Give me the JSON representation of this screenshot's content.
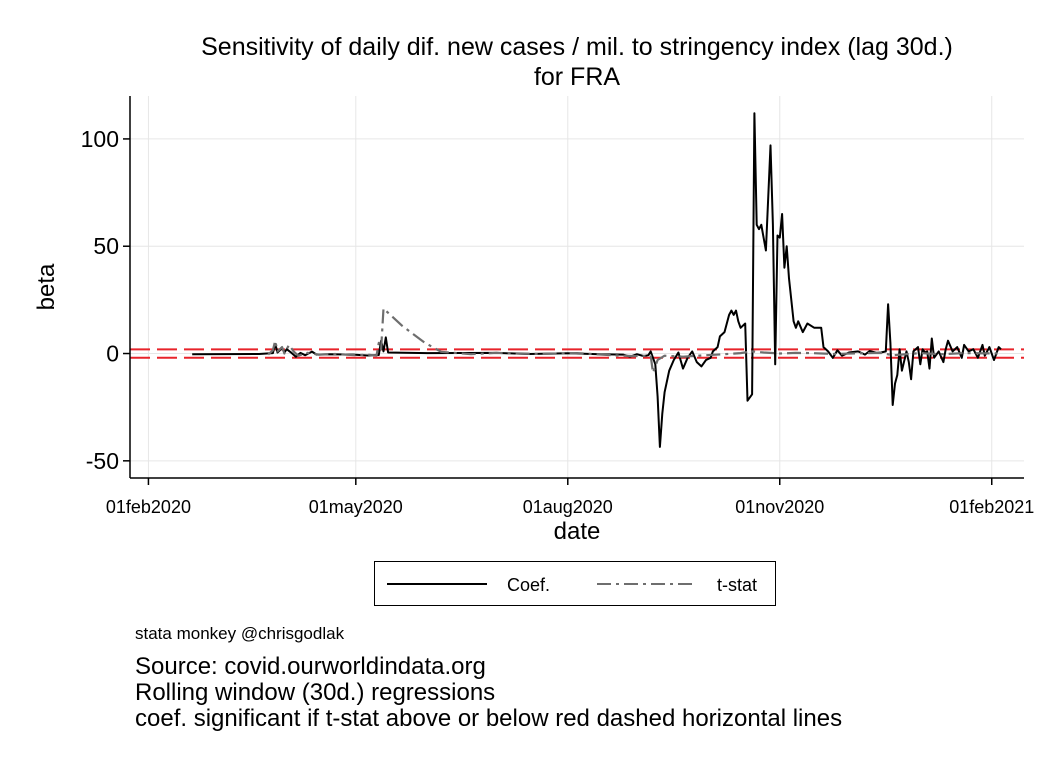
{
  "chart_data": {
    "type": "line",
    "title": "Sensitivity of daily dif. new cases / mil. to stringency index (lag 30d.)",
    "subtitle": "for FRA",
    "xlabel": "date",
    "ylabel": "beta",
    "xlim": [
      "2020-01-24",
      "2021-02-15"
    ],
    "ylim": [
      -58,
      120
    ],
    "yticks": [
      -50,
      0,
      50,
      100
    ],
    "xticks": [
      "2020-02-01",
      "2020-05-01",
      "2020-08-01",
      "2020-11-01",
      "2021-02-01"
    ],
    "xtick_labels": [
      "01feb2020",
      "01may2020",
      "01aug2020",
      "01nov2020",
      "01feb2021"
    ],
    "grid": true,
    "legend": {
      "placement": "bottom",
      "entries": [
        "Coef.",
        "t-stat"
      ]
    },
    "reference_lines": [
      {
        "y": 1.96,
        "color": "#e8232a",
        "style": "dashed"
      },
      {
        "y": -1.96,
        "color": "#e8232a",
        "style": "dashed"
      }
    ],
    "series": [
      {
        "name": "Coef.",
        "color": "#000000",
        "style": "solid",
        "points": [
          [
            "2020-02-20",
            -0.3
          ],
          [
            "2020-03-20",
            -0.2
          ],
          [
            "2020-03-26",
            0.2
          ],
          [
            "2020-03-27",
            4.5
          ],
          [
            "2020-03-28",
            0.5
          ],
          [
            "2020-03-30",
            2.5
          ],
          [
            "2020-03-31",
            0.5
          ],
          [
            "2020-04-01",
            2.0
          ],
          [
            "2020-04-03",
            0.4
          ],
          [
            "2020-04-05",
            -1.5
          ],
          [
            "2020-04-07",
            0.3
          ],
          [
            "2020-04-09",
            -0.8
          ],
          [
            "2020-04-12",
            0.9
          ],
          [
            "2020-04-14",
            -0.5
          ],
          [
            "2020-04-20",
            -0.3
          ],
          [
            "2020-04-30",
            -0.5
          ],
          [
            "2020-05-06",
            -0.9
          ],
          [
            "2020-05-11",
            -0.7
          ],
          [
            "2020-05-12",
            6.0
          ],
          [
            "2020-05-13",
            1.0
          ],
          [
            "2020-05-14",
            7.5
          ],
          [
            "2020-05-15",
            0.5
          ],
          [
            "2020-06-01",
            0.2
          ],
          [
            "2020-07-01",
            0.3
          ],
          [
            "2020-07-15",
            -0.2
          ],
          [
            "2020-08-01",
            0.1
          ],
          [
            "2020-08-15",
            -0.3
          ],
          [
            "2020-08-25",
            -0.5
          ],
          [
            "2020-08-28",
            -1.5
          ],
          [
            "2020-08-31",
            -0.3
          ],
          [
            "2020-09-03",
            -1.2
          ],
          [
            "2020-09-05",
            -0.8
          ],
          [
            "2020-09-06",
            1.0
          ],
          [
            "2020-09-08",
            -5.0
          ],
          [
            "2020-09-09",
            -20.0
          ],
          [
            "2020-09-10",
            -43.5
          ],
          [
            "2020-09-11",
            -28.0
          ],
          [
            "2020-09-12",
            -18.0
          ],
          [
            "2020-09-14",
            -8.0
          ],
          [
            "2020-09-16",
            -3.0
          ],
          [
            "2020-09-18",
            0.5
          ],
          [
            "2020-09-20",
            -7.0
          ],
          [
            "2020-09-22",
            -2.0
          ],
          [
            "2020-09-24",
            1.0
          ],
          [
            "2020-09-26",
            -4.0
          ],
          [
            "2020-09-28",
            -6.0
          ],
          [
            "2020-09-30",
            -3.0
          ],
          [
            "2020-10-02",
            -2.0
          ],
          [
            "2020-10-03",
            1.0
          ],
          [
            "2020-10-05",
            3.0
          ],
          [
            "2020-10-06",
            8.0
          ],
          [
            "2020-10-08",
            10.0
          ],
          [
            "2020-10-10",
            18.0
          ],
          [
            "2020-10-11",
            20.0
          ],
          [
            "2020-10-12",
            18.0
          ],
          [
            "2020-10-13",
            20.0
          ],
          [
            "2020-10-14",
            15.0
          ],
          [
            "2020-10-15",
            12.0
          ],
          [
            "2020-10-17",
            14.0
          ],
          [
            "2020-10-18",
            -22.0
          ],
          [
            "2020-10-20",
            -19.0
          ],
          [
            "2020-10-21",
            112.0
          ],
          [
            "2020-10-22",
            60.0
          ],
          [
            "2020-10-23",
            58.0
          ],
          [
            "2020-10-24",
            60.0
          ],
          [
            "2020-10-26",
            48.0
          ],
          [
            "2020-10-28",
            97.0
          ],
          [
            "2020-10-29",
            60.0
          ],
          [
            "2020-10-30",
            -5.0
          ],
          [
            "2020-10-31",
            55.0
          ],
          [
            "2020-11-01",
            54.0
          ],
          [
            "2020-11-02",
            65.0
          ],
          [
            "2020-11-03",
            40.0
          ],
          [
            "2020-11-04",
            50.0
          ],
          [
            "2020-11-05",
            35.0
          ],
          [
            "2020-11-07",
            15.0
          ],
          [
            "2020-11-08",
            12.0
          ],
          [
            "2020-11-09",
            15.0
          ],
          [
            "2020-11-11",
            10.0
          ],
          [
            "2020-11-13",
            14.0
          ],
          [
            "2020-11-16",
            12.0
          ],
          [
            "2020-11-19",
            12.0
          ],
          [
            "2020-11-20",
            3.0
          ],
          [
            "2020-11-22",
            1.0
          ],
          [
            "2020-11-24",
            -2.0
          ],
          [
            "2020-11-26",
            1.5
          ],
          [
            "2020-11-28",
            -1.0
          ],
          [
            "2020-12-01",
            0.5
          ],
          [
            "2020-12-05",
            1.0
          ],
          [
            "2020-12-08",
            -0.5
          ],
          [
            "2020-12-10",
            1.2
          ],
          [
            "2020-12-13",
            0.3
          ],
          [
            "2020-12-15",
            0.5
          ],
          [
            "2020-12-17",
            1.0
          ],
          [
            "2020-12-18",
            23.0
          ],
          [
            "2020-12-19",
            5.0
          ],
          [
            "2020-12-20",
            -24.0
          ],
          [
            "2020-12-21",
            -14.0
          ],
          [
            "2020-12-22",
            -10.0
          ],
          [
            "2020-12-23",
            2.0
          ],
          [
            "2020-12-24",
            -8.0
          ],
          [
            "2020-12-26",
            1.0
          ],
          [
            "2020-12-27",
            -4.0
          ],
          [
            "2020-12-28",
            -12.0
          ],
          [
            "2020-12-29",
            1.0
          ],
          [
            "2020-12-31",
            3.0
          ],
          [
            "2021-01-01",
            -5.0
          ],
          [
            "2021-01-02",
            2.0
          ],
          [
            "2021-01-03",
            0.5
          ],
          [
            "2021-01-04",
            1.0
          ],
          [
            "2021-01-05",
            -7.0
          ],
          [
            "2021-01-06",
            7.0
          ],
          [
            "2021-01-07",
            -2.0
          ],
          [
            "2021-01-09",
            1.0
          ],
          [
            "2021-01-11",
            -4.0
          ],
          [
            "2021-01-12",
            2.0
          ],
          [
            "2021-01-13",
            6.0
          ],
          [
            "2021-01-15",
            1.0
          ],
          [
            "2021-01-17",
            3.0
          ],
          [
            "2021-01-19",
            -2.0
          ],
          [
            "2021-01-20",
            4.0
          ],
          [
            "2021-01-22",
            1.0
          ],
          [
            "2021-01-24",
            2.0
          ],
          [
            "2021-01-26",
            -2.0
          ],
          [
            "2021-01-28",
            4.0
          ],
          [
            "2021-01-29",
            -1.0
          ],
          [
            "2021-01-31",
            3.0
          ],
          [
            "2021-02-02",
            -3.0
          ],
          [
            "2021-02-04",
            3.0
          ],
          [
            "2021-02-05",
            2.0
          ]
        ]
      },
      {
        "name": "t-stat",
        "color": "#6e6e6e",
        "style": "dash-dot",
        "points": [
          [
            "2020-03-24",
            -0.5
          ],
          [
            "2020-03-26",
            1.5
          ],
          [
            "2020-03-27",
            6.0
          ],
          [
            "2020-03-28",
            1.0
          ],
          [
            "2020-03-30",
            3.0
          ],
          [
            "2020-03-31",
            0.0
          ],
          [
            "2020-04-02",
            4.0
          ],
          [
            "2020-04-04",
            1.0
          ],
          [
            "2020-04-06",
            -1.0
          ],
          [
            "2020-04-10",
            0.3
          ],
          [
            "2020-04-15",
            -0.5
          ],
          [
            "2020-04-22",
            -0.2
          ],
          [
            "2020-05-01",
            -0.8
          ],
          [
            "2020-05-06",
            -0.5
          ],
          [
            "2020-05-10",
            -1.0
          ],
          [
            "2020-05-11",
            5.0
          ],
          [
            "2020-05-12",
            2.0
          ],
          [
            "2020-05-13",
            21.0
          ],
          [
            "2020-05-21",
            13.0
          ],
          [
            "2020-05-31",
            5.0
          ],
          [
            "2020-06-07",
            0.8
          ],
          [
            "2020-06-20",
            -0.3
          ],
          [
            "2020-07-01",
            0.3
          ],
          [
            "2020-07-20",
            -0.2
          ],
          [
            "2020-08-05",
            0.2
          ],
          [
            "2020-08-20",
            -0.8
          ],
          [
            "2020-08-30",
            -1.2
          ],
          [
            "2020-09-06",
            -1.0
          ],
          [
            "2020-09-07",
            -9.0
          ],
          [
            "2020-09-09",
            -3.0
          ],
          [
            "2020-09-12",
            -1.0
          ],
          [
            "2020-09-20",
            -1.5
          ],
          [
            "2020-09-30",
            -0.8
          ],
          [
            "2020-10-08",
            -0.3
          ],
          [
            "2020-10-15",
            0.2
          ],
          [
            "2020-10-20",
            1.0
          ],
          [
            "2020-10-25",
            0.5
          ],
          [
            "2020-11-01",
            0.0
          ],
          [
            "2020-11-08",
            0.3
          ],
          [
            "2020-11-15",
            0.2
          ],
          [
            "2020-11-25",
            -0.2
          ],
          [
            "2020-12-05",
            0.1
          ],
          [
            "2020-12-15",
            0.3
          ],
          [
            "2020-12-20",
            -0.8
          ],
          [
            "2021-01-01",
            0.2
          ],
          [
            "2021-01-10",
            -0.3
          ],
          [
            "2021-01-20",
            0.2
          ],
          [
            "2021-02-05",
            0.0
          ]
        ]
      }
    ]
  },
  "legend": {
    "coef_label": "Coef.",
    "tstat_label": "t-stat"
  },
  "notes": {
    "credit": "stata monkey @chrisgodlak",
    "lines": [
      "Source: covid.ourworldindata.org",
      "Rolling window (30d.) regressions",
      "coef. significant if t-stat above or below red dashed horizontal lines"
    ]
  }
}
